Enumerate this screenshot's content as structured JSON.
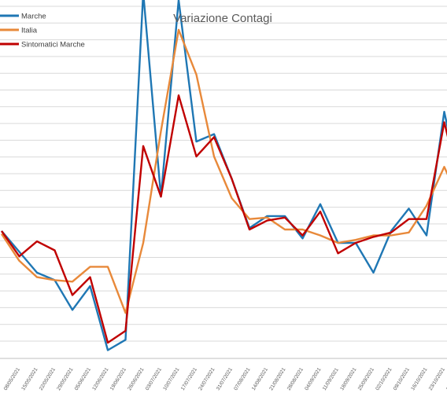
{
  "chart_data": {
    "type": "line",
    "title": "Variazione Contagi",
    "xlabel": "",
    "ylabel": "",
    "grid": true,
    "legend": "top-left",
    "categories": [
      "08/05/2021",
      "15/05/2021",
      "22/05/2021",
      "29/05/2021",
      "05/06/2021",
      "12/06/2021",
      "19/06/2021",
      "26/06/2021",
      "03/07/2021",
      "10/07/2021",
      "17/07/2021",
      "24/07/2021",
      "31/07/2021",
      "07/08/2021",
      "14/08/2021",
      "21/08/2021",
      "28/08/2021",
      "04/09/2021",
      "11/09/2021",
      "18/09/2021",
      "25/09/2021",
      "02/10/2021",
      "09/10/2021",
      "16/10/2021",
      "23/10/2021",
      "30/10/2021",
      "06/11/2021",
      "13/11/2021"
    ],
    "ylim": [
      -0.9,
      1.5
    ],
    "series": [
      {
        "name": "Marche",
        "color": "#1f77b4",
        "values": [
          -0.05,
          -0.19,
          -0.33,
          -0.38,
          -0.58,
          -0.42,
          -0.85,
          -0.78,
          1.55,
          0.18,
          1.5,
          0.55,
          0.6,
          0.3,
          -0.03,
          0.05,
          0.05,
          -0.1,
          0.13,
          -0.13,
          -0.13,
          -0.33,
          -0.05,
          0.1,
          -0.08,
          0.75,
          0.2,
          0.28
        ]
      },
      {
        "name": "Italia",
        "color": "#e8893a",
        "values": [
          -0.07,
          -0.25,
          -0.36,
          -0.38,
          -0.39,
          -0.29,
          -0.29,
          -0.6,
          -0.13,
          0.62,
          1.3,
          1.0,
          0.45,
          0.17,
          0.03,
          0.04,
          -0.04,
          -0.04,
          -0.08,
          -0.13,
          -0.11,
          -0.08,
          -0.08,
          -0.06,
          0.12,
          0.38,
          0.12,
          0.1
        ]
      },
      {
        "name": "Sintomatici Marche",
        "color": "#c00000",
        "values": [
          -0.05,
          -0.22,
          -0.12,
          -0.18,
          -0.48,
          -0.36,
          -0.8,
          -0.72,
          0.52,
          0.18,
          0.86,
          0.45,
          0.58,
          0.3,
          -0.04,
          0.02,
          0.04,
          -0.08,
          0.08,
          -0.2,
          -0.13,
          -0.09,
          -0.06,
          0.03,
          0.03,
          0.68,
          0.2,
          0.2
        ]
      }
    ]
  }
}
